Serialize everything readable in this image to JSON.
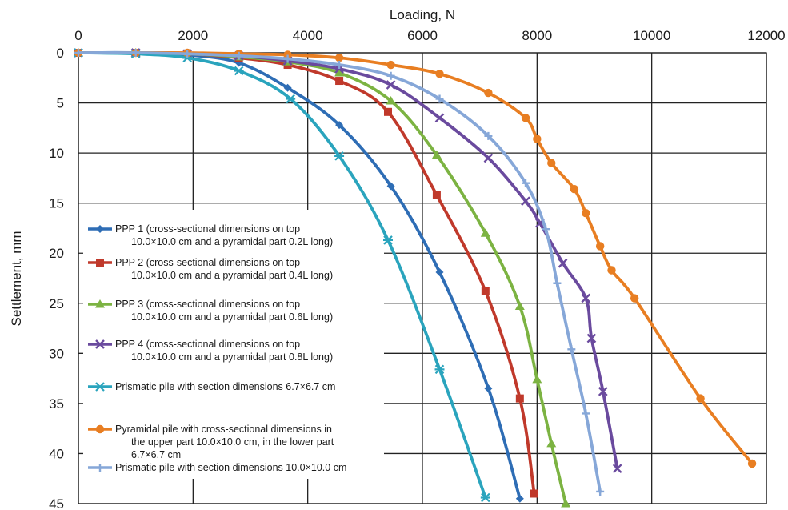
{
  "chart_data": {
    "type": "line",
    "xlabel": "Loading, N",
    "ylabel": "Settlement, mm",
    "xlim": [
      0,
      12000
    ],
    "ylim": [
      0,
      45
    ],
    "y_inverted": true,
    "x_axis_position": "top",
    "xticks": [
      "0",
      "2000",
      "4000",
      "6000",
      "8000",
      "10000",
      "12000"
    ],
    "yticks": [
      "0",
      "5",
      "10",
      "15",
      "20",
      "25",
      "30",
      "35",
      "40",
      "45"
    ],
    "grid": true,
    "legend_position": "left",
    "series": [
      {
        "name": "PPP 1 (cross-sectional dimensions on top 10.0×10.0 cm and a pyramidal part 0.2L long)",
        "legend_lines": [
          "PPP 1 (cross-sectional dimensions on top",
          "10.0×10.0 cm and a pyramidal part 0.2L long)"
        ],
        "color": "#2e6db5",
        "marker": "diamond",
        "points": [
          [
            0,
            0
          ],
          [
            1000,
            0
          ],
          [
            1900,
            0.2
          ],
          [
            2800,
            1
          ],
          [
            3650,
            3.5
          ],
          [
            4550,
            7.2
          ],
          [
            5450,
            13.3
          ],
          [
            6300,
            21.9
          ],
          [
            7150,
            33.5
          ],
          [
            7700,
            44.5
          ]
        ]
      },
      {
        "name": "PPP 2 (cross-sectional dimensions on top 10.0×10.0 cm and a pyramidal part 0.4L long)",
        "legend_lines": [
          "PPP 2 (cross-sectional dimensions on top",
          "10.0×10.0 cm and a pyramidal part 0.4L long)"
        ],
        "color": "#c0392b",
        "marker": "square",
        "points": [
          [
            0,
            0
          ],
          [
            1000,
            0
          ],
          [
            1900,
            0.1
          ],
          [
            2800,
            0.5
          ],
          [
            3650,
            1.2
          ],
          [
            4550,
            2.8
          ],
          [
            5400,
            5.9
          ],
          [
            6250,
            14.2
          ],
          [
            7100,
            23.8
          ],
          [
            7700,
            34.5
          ],
          [
            7950,
            44
          ]
        ]
      },
      {
        "name": "PPP 3 (cross-sectional dimensions on top 10.0×10.0 cm and a pyramidal part 0.6L long)",
        "legend_lines": [
          "PPP 3 (cross-sectional dimensions on top",
          "10.0×10.0 cm and a pyramidal part 0.6L long)"
        ],
        "color": "#7cb342",
        "marker": "triangle",
        "points": [
          [
            0,
            0
          ],
          [
            1000,
            0
          ],
          [
            1900,
            0.1
          ],
          [
            2800,
            0.4
          ],
          [
            3650,
            0.9
          ],
          [
            4550,
            2
          ],
          [
            5450,
            4.8
          ],
          [
            6250,
            10.2
          ],
          [
            7100,
            18
          ],
          [
            7700,
            25.3
          ],
          [
            8000,
            32.6
          ],
          [
            8250,
            39
          ],
          [
            8500,
            45
          ]
        ]
      },
      {
        "name": "PPP 4 (cross-sectional dimensions on top 10.0×10.0 cm and a pyramidal part 0.8L long)",
        "legend_lines": [
          "PPP 4 (cross-sectional dimensions on top",
          "10.0×10.0 cm and a pyramidal part 0.8L long)"
        ],
        "color": "#6a4a9e",
        "marker": "x",
        "points": [
          [
            0,
            0
          ],
          [
            1000,
            0
          ],
          [
            1900,
            0.1
          ],
          [
            2800,
            0.3
          ],
          [
            3650,
            0.8
          ],
          [
            4550,
            1.6
          ],
          [
            5450,
            3.2
          ],
          [
            6300,
            6.5
          ],
          [
            7150,
            10.5
          ],
          [
            7800,
            14.8
          ],
          [
            8050,
            17
          ],
          [
            8450,
            21
          ],
          [
            8850,
            24.5
          ],
          [
            8950,
            28.5
          ],
          [
            9150,
            33.8
          ],
          [
            9400,
            41.5
          ]
        ]
      },
      {
        "name": "Prismatic pile with section dimensions 6.7×6.7 cm",
        "legend_lines": [
          "Prismatic pile with section dimensions 6.7×6.7 cm"
        ],
        "color": "#2aa4bd",
        "marker": "star",
        "points": [
          [
            0,
            0
          ],
          [
            1000,
            0.1
          ],
          [
            1900,
            0.5
          ],
          [
            2800,
            1.8
          ],
          [
            3700,
            4.6
          ],
          [
            4550,
            10.3
          ],
          [
            5400,
            18.7
          ],
          [
            6300,
            31.6
          ],
          [
            7100,
            44.4
          ]
        ]
      },
      {
        "name": "Pyramidal pile with cross-sectional dimensions in the upper part 10.0×10.0 cm, in the lower part 6.7×6.7 cm",
        "legend_lines": [
          "Pyramidal pile with cross-sectional dimensions in",
          "the upper part 10.0×10.0 cm, in the lower part",
          "6.7×6.7 cm"
        ],
        "color": "#e87e22",
        "marker": "circle",
        "points": [
          [
            0,
            0
          ],
          [
            1000,
            0
          ],
          [
            1900,
            0
          ],
          [
            2800,
            0.1
          ],
          [
            3650,
            0.2
          ],
          [
            4550,
            0.5
          ],
          [
            5450,
            1.2
          ],
          [
            6300,
            2.1
          ],
          [
            7150,
            4
          ],
          [
            7800,
            6.5
          ],
          [
            8000,
            8.6
          ],
          [
            8250,
            11
          ],
          [
            8650,
            13.6
          ],
          [
            8850,
            16
          ],
          [
            9100,
            19.3
          ],
          [
            9300,
            21.7
          ],
          [
            9700,
            24.5
          ],
          [
            10850,
            34.5
          ],
          [
            11750,
            41
          ]
        ]
      },
      {
        "name": "Prismatic pile with section dimensions 10.0×10.0 cm",
        "legend_lines": [
          "Prismatic pile with section dimensions 10.0×10.0 cm"
        ],
        "color": "#86a7d8",
        "marker": "plus",
        "points": [
          [
            0,
            0
          ],
          [
            1000,
            0
          ],
          [
            1900,
            0.1
          ],
          [
            2800,
            0.3
          ],
          [
            3650,
            0.6
          ],
          [
            4550,
            1.2
          ],
          [
            5450,
            2.3
          ],
          [
            6300,
            4.6
          ],
          [
            7150,
            8.3
          ],
          [
            7800,
            13
          ],
          [
            8150,
            17.6
          ],
          [
            8350,
            23
          ],
          [
            8600,
            29.6
          ],
          [
            8850,
            36
          ],
          [
            9100,
            43.8
          ]
        ]
      }
    ]
  }
}
